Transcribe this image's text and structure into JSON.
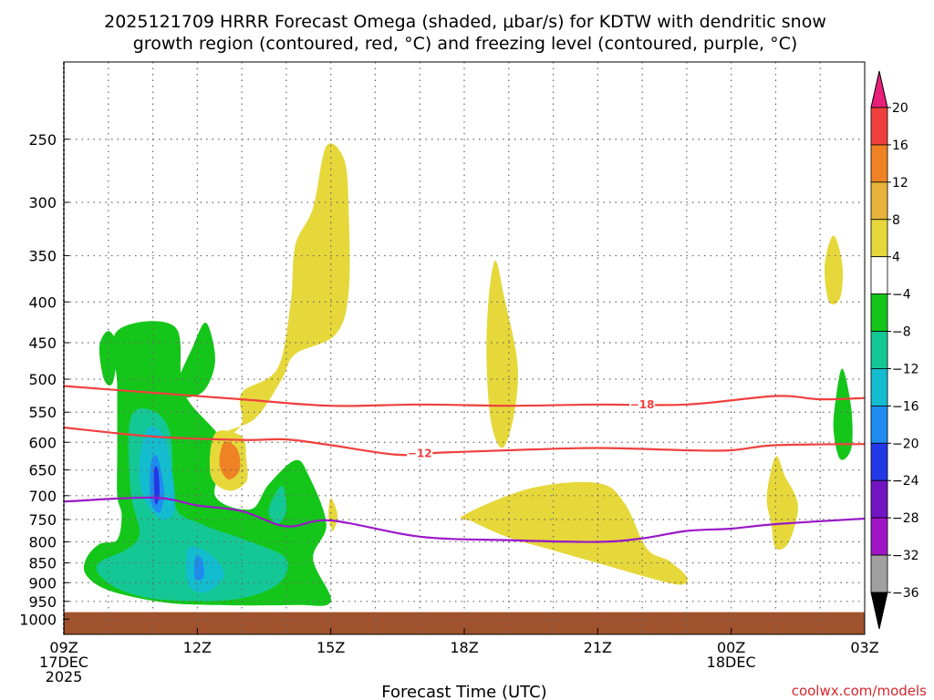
{
  "chart_data": {
    "type": "contour",
    "title": [
      "2025121709 HRRR Forecast Omega (shaded, μbar/s) for KDTW with dendritic snow",
      "growth region (contoured, red, °C) and freezing level (contoured, purple, °C)"
    ],
    "xlabel": "Forecast Time (UTC)",
    "ylabel": "",
    "x_ticks": [
      {
        "hour": 0,
        "lines": [
          "09Z",
          "17DEC",
          "2025"
        ]
      },
      {
        "hour": 3,
        "lines": [
          "12Z"
        ]
      },
      {
        "hour": 6,
        "lines": [
          "15Z"
        ]
      },
      {
        "hour": 9,
        "lines": [
          "18Z"
        ]
      },
      {
        "hour": 12,
        "lines": [
          "21Z"
        ]
      },
      {
        "hour": 15,
        "lines": [
          "00Z",
          "18DEC"
        ]
      },
      {
        "hour": 18,
        "lines": [
          "03Z"
        ]
      }
    ],
    "y_ticks": [
      250,
      300,
      350,
      400,
      450,
      500,
      550,
      600,
      650,
      700,
      750,
      800,
      850,
      900,
      950,
      1000
    ],
    "x_range_hours": [
      0,
      18
    ],
    "y_range_hpa": [
      200,
      1045
    ],
    "grid": true,
    "colorbar": {
      "labels": [
        "20",
        "16",
        "12",
        "8",
        "4",
        "−4",
        "−8",
        "−12",
        "−16",
        "−20",
        "−24",
        "−28",
        "−32",
        "−36"
      ],
      "colors": [
        "#e8207a",
        "#f0403e",
        "#ee8224",
        "#e6b43a",
        "#e6d83a",
        "#ffffff",
        "#14c61a",
        "#14c896",
        "#14bcd0",
        "#1e8cf0",
        "#2238e6",
        "#7214c2",
        "#a014c8",
        "#a0a0a0",
        "#000000"
      ]
    },
    "contours": [
      {
        "label": "−18",
        "color": "#f0403e",
        "label_hour": 13.0,
        "points": [
          [
            0,
            510
          ],
          [
            2,
            520
          ],
          [
            4,
            530
          ],
          [
            6,
            540
          ],
          [
            8,
            538
          ],
          [
            10,
            540
          ],
          [
            12,
            538
          ],
          [
            14,
            538
          ],
          [
            16,
            525
          ],
          [
            17,
            530
          ],
          [
            18,
            528
          ]
        ]
      },
      {
        "label": "−12",
        "color": "#f0403e",
        "label_hour": 8.0,
        "points": [
          [
            0,
            575
          ],
          [
            2,
            590
          ],
          [
            4,
            596
          ],
          [
            5,
            595
          ],
          [
            6,
            605
          ],
          [
            7.5,
            622
          ],
          [
            8.5,
            618
          ],
          [
            10,
            614
          ],
          [
            12,
            610
          ],
          [
            14,
            614
          ],
          [
            15,
            614
          ],
          [
            16,
            605
          ],
          [
            18,
            603
          ]
        ]
      },
      {
        "label": "",
        "color": "#9a18c8",
        "points": [
          [
            0,
            712
          ],
          [
            2,
            704
          ],
          [
            3,
            720
          ],
          [
            4,
            732
          ],
          [
            5,
            765
          ],
          [
            6,
            752
          ],
          [
            8,
            788
          ],
          [
            10,
            796
          ],
          [
            12,
            800
          ],
          [
            13,
            792
          ],
          [
            14,
            775
          ],
          [
            15,
            770
          ],
          [
            16,
            760
          ],
          [
            18,
            748
          ]
        ]
      }
    ],
    "omega_regions": [
      {
        "name": "rising-large-green",
        "color": "#14c61a",
        "points": [
          [
            1.2,
            435
          ],
          [
            2.5,
            430
          ],
          [
            2.7,
            520
          ],
          [
            3.6,
            605
          ],
          [
            3.4,
            700
          ],
          [
            4.2,
            728
          ],
          [
            4.6,
            678
          ],
          [
            5.2,
            632
          ],
          [
            5.5,
            660
          ],
          [
            5.9,
            760
          ],
          [
            5.6,
            840
          ],
          [
            6.0,
            950
          ],
          [
            5.2,
            960
          ],
          [
            3.4,
            960
          ],
          [
            2.2,
            952
          ],
          [
            1.0,
            920
          ],
          [
            0.5,
            880
          ],
          [
            0.5,
            840
          ],
          [
            0.8,
            805
          ],
          [
            1.2,
            795
          ],
          [
            1.3,
            740
          ],
          [
            1.2,
            700
          ],
          [
            1.2,
            620
          ],
          [
            1.2,
            510
          ]
        ]
      },
      {
        "name": "rising-upper-green",
        "color": "#14c61a",
        "points": [
          [
            2.5,
            520
          ],
          [
            2.9,
            455
          ],
          [
            3.2,
            425
          ],
          [
            3.4,
            475
          ],
          [
            3.1,
            520
          ]
        ]
      },
      {
        "name": "rising-small-green-left",
        "color": "#14c61a",
        "points": [
          [
            0.9,
            500
          ],
          [
            0.8,
            455
          ],
          [
            1.0,
            435
          ],
          [
            1.2,
            455
          ],
          [
            1.1,
            505
          ]
        ]
      },
      {
        "name": "rising-cyan",
        "color": "#14c896",
        "points": [
          [
            1.5,
            560
          ],
          [
            2.0,
            548
          ],
          [
            2.4,
            588
          ],
          [
            2.5,
            720
          ],
          [
            3.1,
            760
          ],
          [
            4.2,
            800
          ],
          [
            5.0,
            840
          ],
          [
            4.8,
            905
          ],
          [
            3.8,
            945
          ],
          [
            2.2,
            945
          ],
          [
            1.3,
            920
          ],
          [
            0.8,
            880
          ],
          [
            0.8,
            848
          ],
          [
            1.4,
            818
          ],
          [
            1.7,
            780
          ],
          [
            1.5,
            690
          ]
        ]
      },
      {
        "name": "rising-cyan-right",
        "color": "#14c896",
        "points": [
          [
            4.9,
            680
          ],
          [
            5.0,
            730
          ],
          [
            4.8,
            760
          ],
          [
            4.6,
            730
          ]
        ]
      },
      {
        "name": "rising-light-blue",
        "color": "#14bcd0",
        "points": [
          [
            1.9,
            575
          ],
          [
            2.3,
            600
          ],
          [
            2.5,
            720
          ],
          [
            2.2,
            750
          ],
          [
            1.8,
            705
          ],
          [
            1.7,
            640
          ]
        ]
      },
      {
        "name": "rising-blue-core",
        "color": "#1e8cf0",
        "points": [
          [
            1.95,
            640
          ],
          [
            2.1,
            625
          ],
          [
            2.25,
            690
          ],
          [
            2.15,
            735
          ],
          [
            1.95,
            710
          ]
        ]
      },
      {
        "name": "rising-dark-blue-core",
        "color": "#2238e6",
        "points": [
          [
            2.03,
            650
          ],
          [
            2.12,
            650
          ],
          [
            2.15,
            700
          ],
          [
            2.05,
            715
          ]
        ]
      },
      {
        "name": "rising-light-blue-lower",
        "color": "#14bcd0",
        "points": [
          [
            2.8,
            815
          ],
          [
            3.3,
            830
          ],
          [
            3.6,
            880
          ],
          [
            3.2,
            925
          ],
          [
            2.8,
            905
          ]
        ]
      },
      {
        "name": "rising-blue-lower",
        "color": "#1e8cf0",
        "points": [
          [
            2.95,
            838
          ],
          [
            3.1,
            840
          ],
          [
            3.15,
            885
          ],
          [
            2.95,
            890
          ]
        ]
      },
      {
        "name": "sinking-yellow-tall",
        "color": "#e6d83a",
        "points": [
          [
            5.9,
            255
          ],
          [
            6.3,
            265
          ],
          [
            6.4,
            305
          ],
          [
            6.4,
            390
          ],
          [
            6.1,
            440
          ],
          [
            5.2,
            465
          ],
          [
            4.9,
            500
          ],
          [
            4.3,
            560
          ],
          [
            3.5,
            590
          ],
          [
            3.4,
            650
          ],
          [
            3.6,
            600
          ],
          [
            4.0,
            568
          ],
          [
            4.0,
            520
          ],
          [
            4.8,
            485
          ],
          [
            5.1,
            400
          ],
          [
            5.2,
            340
          ],
          [
            5.6,
            305
          ]
        ]
      },
      {
        "name": "sinking-yellow-mid",
        "color": "#e6d83a",
        "points": [
          [
            3.4,
            585
          ],
          [
            4.0,
            590
          ],
          [
            4.1,
            630
          ],
          [
            4.1,
            672
          ],
          [
            3.7,
            690
          ],
          [
            3.3,
            660
          ]
        ]
      },
      {
        "name": "sinking-orange",
        "color": "#ee8224",
        "points": [
          [
            3.6,
            600
          ],
          [
            3.9,
            612
          ],
          [
            3.95,
            650
          ],
          [
            3.7,
            668
          ],
          [
            3.5,
            640
          ]
        ]
      },
      {
        "name": "sinking-yellow-narrow-18z",
        "color": "#e6d83a",
        "points": [
          [
            9.7,
            355
          ],
          [
            9.9,
            395
          ],
          [
            10.2,
            480
          ],
          [
            10.1,
            560
          ],
          [
            9.85,
            610
          ],
          [
            9.6,
            565
          ],
          [
            9.5,
            470
          ],
          [
            9.55,
            395
          ]
        ]
      },
      {
        "name": "sinking-yellow-lower-21z",
        "color": "#e6d83a",
        "points": [
          [
            9.0,
            740
          ],
          [
            10.5,
            685
          ],
          [
            12.0,
            675
          ],
          [
            12.6,
            715
          ],
          [
            13.1,
            815
          ],
          [
            13.6,
            845
          ],
          [
            14.0,
            885
          ],
          [
            13.9,
            905
          ],
          [
            13.4,
            895
          ],
          [
            12.3,
            860
          ],
          [
            11.0,
            820
          ],
          [
            10.0,
            790
          ],
          [
            9.2,
            755
          ]
        ]
      },
      {
        "name": "sinking-yellow-small-right",
        "color": "#e6d83a",
        "points": [
          [
            16.0,
            625
          ],
          [
            16.2,
            660
          ],
          [
            16.5,
            720
          ],
          [
            16.3,
            800
          ],
          [
            16.0,
            815
          ],
          [
            15.9,
            760
          ],
          [
            15.8,
            700
          ]
        ]
      },
      {
        "name": "sinking-yellow-upper-right",
        "color": "#e6d83a",
        "points": [
          [
            17.3,
            330
          ],
          [
            17.5,
            360
          ],
          [
            17.45,
            395
          ],
          [
            17.2,
            400
          ],
          [
            17.1,
            360
          ]
        ]
      },
      {
        "name": "rising-green-right",
        "color": "#14c61a",
        "points": [
          [
            17.5,
            485
          ],
          [
            17.7,
            545
          ],
          [
            17.7,
            610
          ],
          [
            17.45,
            630
          ],
          [
            17.3,
            580
          ],
          [
            17.35,
            530
          ]
        ]
      },
      {
        "name": "sinking-yellow-spike-15z",
        "color": "#e6d83a",
        "points": [
          [
            6.0,
            705
          ],
          [
            6.15,
            740
          ],
          [
            6.05,
            775
          ],
          [
            5.95,
            745
          ]
        ]
      }
    ],
    "terrain_band_hpa": [
      980,
      1040
    ]
  },
  "credit": "coolwx.com/models"
}
